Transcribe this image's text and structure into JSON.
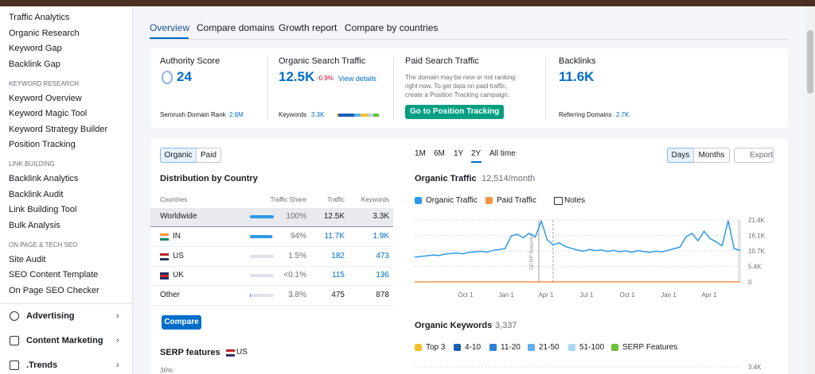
{
  "sidebar": {
    "top_items": [
      "Traffic Analytics",
      "Organic Research",
      "Keyword Gap",
      "Backlink Gap"
    ],
    "sections": [
      {
        "title": "KEYWORD RESEARCH",
        "items": [
          "Keyword Overview",
          "Keyword Magic Tool",
          "Keyword Strategy Builder",
          "Position Tracking"
        ]
      },
      {
        "title": "LINK BUILDING",
        "items": [
          "Backlink Analytics",
          "Backlink Audit",
          "Link Building Tool",
          "Bulk Analysis"
        ]
      },
      {
        "title": "ON PAGE & TECH SEO",
        "items": [
          "Site Audit",
          "SEO Content Template",
          "On Page SEO Checker"
        ]
      }
    ],
    "menus": [
      "Advertising",
      "Content Marketing",
      ".Trends"
    ]
  },
  "tabs": [
    "Overview",
    "Compare domains",
    "Growth report",
    "Compare by countries"
  ],
  "summary": {
    "authority": {
      "label": "Authority Score",
      "value": "24",
      "rank_label": "Semrush Domain Rank",
      "rank": "2.6M"
    },
    "organic": {
      "label": "Organic Search Traffic",
      "value": "12.5K",
      "change": "-0.9%",
      "link": "View details",
      "keywords_label": "Keywords",
      "keywords": "3.3K"
    },
    "paid": {
      "label": "Paid Search Traffic",
      "note": "The domain may be new or not ranking right now. To get data on paid traffic, create a Position Tracking campaign.",
      "button": "Go to Position Tracking"
    },
    "backlinks": {
      "label": "Backlinks",
      "value": "11.6K",
      "ref_label": "Referring Domains",
      "ref": "2.7K"
    }
  },
  "distribution": {
    "toggle": [
      "Organic",
      "Paid"
    ],
    "title": "Distribution by Country",
    "headers": [
      "Countries",
      "Traffic Share",
      "Traffic",
      "Keywords"
    ],
    "rows": [
      [
        "Worldwide",
        "100%",
        "12.5K",
        "3.3K"
      ],
      [
        "IN",
        "94%",
        "11.7K",
        "1.9K"
      ],
      [
        "US",
        "1.5%",
        "182",
        "473"
      ],
      [
        "UK",
        "<0.1%",
        "115",
        "136"
      ],
      [
        "Other",
        "3.8%",
        "475",
        "878"
      ]
    ],
    "button": "Compare",
    "serp_title": "SERP features",
    "serp_country": "US",
    "serp_tick": "36%"
  },
  "periods": [
    "1M",
    "6M",
    "1Y",
    "2Y",
    "All time"
  ],
  "view": [
    "Days",
    "Months"
  ],
  "export": "Export",
  "traffic_chart": {
    "type": "line",
    "title": "Organic Traffic",
    "subtitle": "12,514/month",
    "series": [
      {
        "name": "Organic Traffic",
        "color": "#2e9ae9",
        "values": [
          8500,
          8800,
          9000,
          9300,
          9100,
          9600,
          9800,
          10000,
          9700,
          10200,
          10400,
          10600,
          10300,
          10900,
          11200,
          11500,
          15800,
          16500,
          15200,
          16800,
          15500,
          21000,
          14500,
          12800,
          13500,
          12200,
          11600,
          11000,
          10600,
          11200,
          10800,
          11000,
          10500,
          10900,
          10400,
          10700,
          10300,
          10800,
          10500,
          10200,
          10600,
          10400,
          10900,
          11500,
          12000,
          15500,
          16800,
          14200,
          17500,
          15000,
          13800,
          12500,
          21200,
          11500,
          10900
        ]
      },
      {
        "name": "Paid Traffic",
        "color": "#f59346",
        "values": [
          0,
          0,
          0,
          0,
          0,
          0,
          0,
          0,
          0,
          0,
          0,
          0,
          0,
          0,
          0,
          0,
          0,
          0,
          0,
          0,
          0,
          0,
          0,
          0,
          0,
          0,
          0,
          0,
          0,
          0,
          0,
          0,
          0,
          0,
          0,
          0,
          0,
          0,
          0,
          0,
          0,
          0,
          0,
          0,
          0,
          0,
          0,
          0,
          0,
          0,
          0,
          0,
          0,
          0,
          0
        ]
      }
    ],
    "notes": "Notes",
    "ylim": [
      0,
      21400
    ],
    "yticks": [
      {
        "value": 21400,
        "label": "21.4K"
      },
      {
        "value": 16100,
        "label": "16.1K"
      },
      {
        "value": 10700,
        "label": "10.7K"
      },
      {
        "value": 5400,
        "label": "5.4K"
      },
      0
    ],
    "xticks": [
      "Oct 1",
      "Jan 1",
      "Apr 1",
      "Jul 1",
      "Oct 1",
      "Jan 1",
      "Apr 1"
    ],
    "annotation": "SERP features",
    "grid": true
  },
  "keywords_chart": {
    "title": "Organic Keywords",
    "subtitle": "3,337",
    "legend": [
      {
        "name": "Top 3",
        "color": "#f5c02d"
      },
      {
        "name": "4-10",
        "color": "#1a5fb4"
      },
      {
        "name": "11-20",
        "color": "#2e7fd8"
      },
      {
        "name": "21-50",
        "color": "#5eb0ef"
      },
      {
        "name": "51-100",
        "color": "#a9d8f8"
      },
      {
        "name": "SERP Features",
        "color": "#6bbf3b"
      }
    ],
    "ytick": "3.4K"
  }
}
